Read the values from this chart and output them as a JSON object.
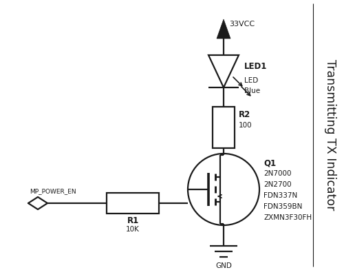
{
  "background_color": "#ffffff",
  "line_color": "#1a1a1a",
  "line_width": 1.6,
  "title_text": "Transmitting TX Indicator",
  "title_fontsize": 12.5,
  "vcc_label": "33VCC",
  "gnd_label": "GND",
  "led_label": "LED1",
  "led_sub1": "LED",
  "led_sub2": "Blue",
  "r2_label": "R2",
  "r2_val": "100",
  "r1_label": "R1",
  "r1_val": "10K",
  "q1_label": "Q1",
  "q1_vals": [
    "2N7000",
    "2N2700",
    "FDN337N",
    "FDN359BN",
    "ZXMN3F30FH"
  ],
  "input_label": "MP_POWER_EN"
}
